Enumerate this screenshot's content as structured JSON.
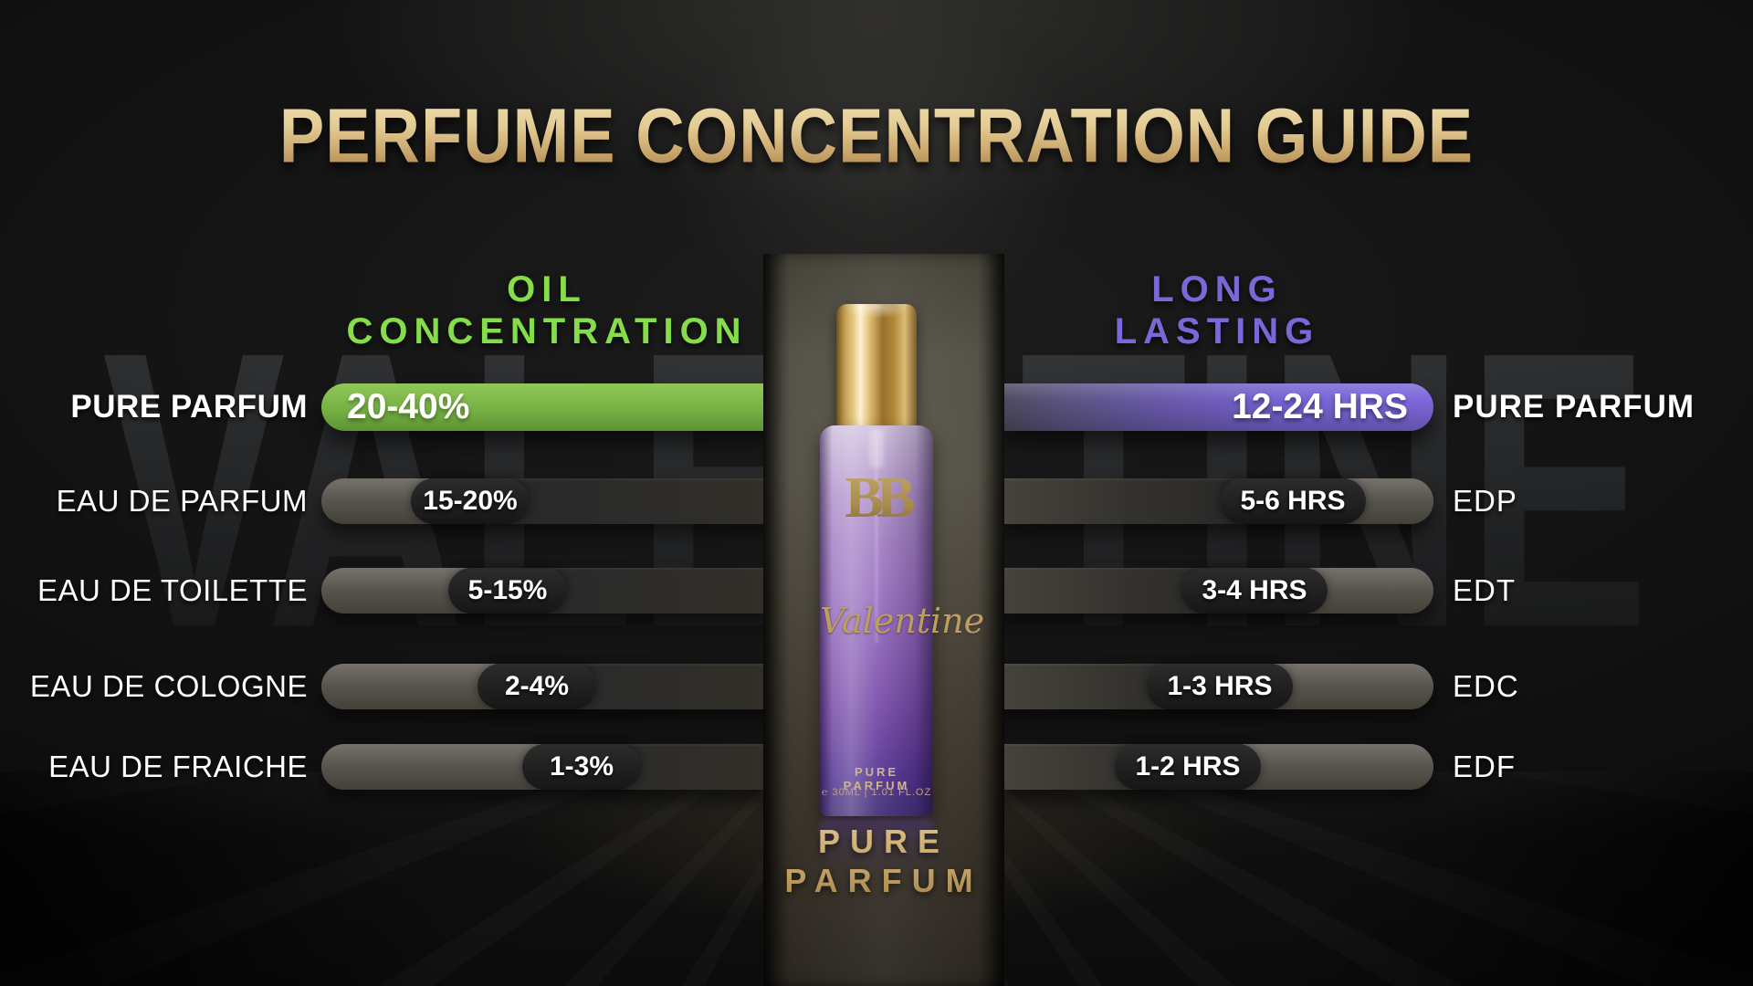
{
  "title": "PERFUME CONCENTRATION GUIDE",
  "watermark": "VALENTINE",
  "left": {
    "header_line1": "OIL",
    "header_line2": "CONCENTRATION",
    "rows": [
      {
        "label": "PURE PARFUM",
        "value": "20-40%"
      },
      {
        "label": "EAU DE PARFUM",
        "value": "15-20%"
      },
      {
        "label": "EAU DE TOILETTE",
        "value": "5-15%"
      },
      {
        "label": "EAU DE COLOGNE",
        "value": "2-4%"
      },
      {
        "label": "EAU DE FRAICHE",
        "value": "1-3%"
      }
    ]
  },
  "right": {
    "header_line1": "LONG",
    "header_line2": "LASTING",
    "rows": [
      {
        "value": "12-24 HRS",
        "label": "PURE PARFUM"
      },
      {
        "value": "5-6 HRS",
        "label": "EDP"
      },
      {
        "value": "3-4 HRS",
        "label": "EDT"
      },
      {
        "value": "1-3 HRS",
        "label": "EDC"
      },
      {
        "value": "1-2 HRS",
        "label": "EDF"
      }
    ]
  },
  "bottle": {
    "brand": "BB",
    "name": "Valentine",
    "type_label": "PURE PARFUM",
    "volume": "℮ 30ML  |  1.01 FL.OZ"
  },
  "footer": {
    "line1": "PURE",
    "line2": "PARFUM"
  },
  "colors": {
    "accent_green": "#86dd4a",
    "bar_green": "#76b144",
    "accent_purple": "#7b68d8",
    "bar_purple": "#7661d0",
    "gold": "#d2b278",
    "background": "#0b0b0b"
  },
  "chart_data": {
    "type": "bar",
    "title": "PERFUME CONCENTRATION GUIDE",
    "categories": [
      "PURE PARFUM",
      "EAU DE PARFUM",
      "EAU DE TOILETTE",
      "EAU DE COLOGNE",
      "EAU DE FRAICHE"
    ],
    "series": [
      {
        "name": "OIL CONCENTRATION",
        "values": [
          "20-40%",
          "15-20%",
          "5-15%",
          "2-4%",
          "1-3%"
        ],
        "color": "#76b144",
        "side": "left"
      },
      {
        "name": "LONG LASTING",
        "values": [
          "12-24 HRS",
          "5-6 HRS",
          "3-4 HRS",
          "1-3 HRS",
          "1-2 HRS"
        ],
        "color": "#7661d0",
        "side": "right",
        "short_labels": [
          "PURE PARFUM",
          "EDP",
          "EDT",
          "EDC",
          "EDF"
        ]
      }
    ],
    "legend_position": "none",
    "grid": false
  }
}
